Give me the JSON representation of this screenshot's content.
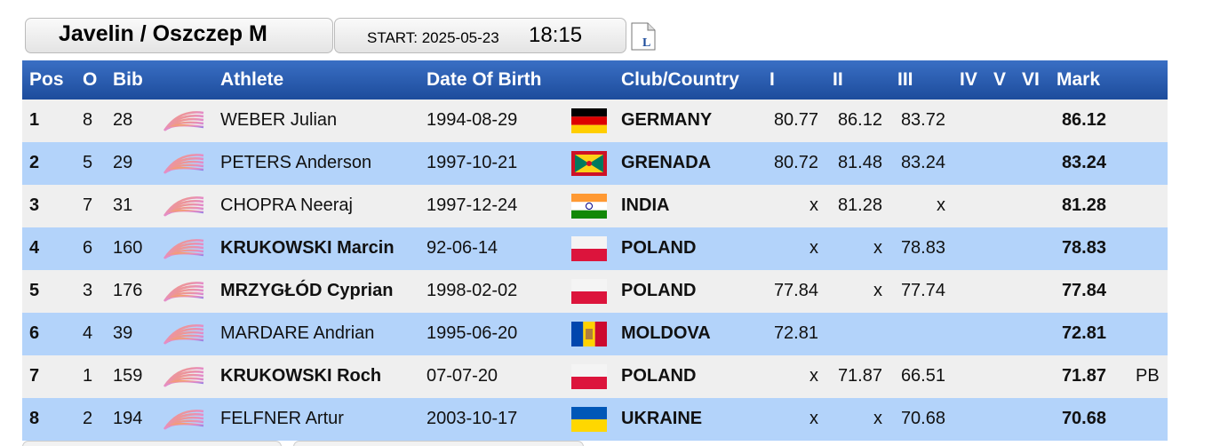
{
  "header": {
    "title": "Javelin / Oszczep M",
    "start_label": "START: 2025-05-23",
    "start_time": "18:15"
  },
  "table": {
    "columns": [
      "Pos",
      "O",
      "Bib",
      "Athlete",
      "Date Of Birth",
      "Club/Country",
      "I",
      "II",
      "III",
      "IV",
      "V",
      "VI",
      "Mark"
    ],
    "rows": [
      {
        "pos": 1,
        "order": 8,
        "bib": 28,
        "athlete": "WEBER Julian",
        "dob": "1994-08-29",
        "country": "GERMANY",
        "attempts": [
          "80.77",
          "86.12",
          "83.72",
          null,
          null,
          null
        ],
        "mark": "86.12",
        "note": null
      },
      {
        "pos": 2,
        "order": 5,
        "bib": 29,
        "athlete": "PETERS Anderson",
        "dob": "1997-10-21",
        "country": "GRENADA",
        "attempts": [
          "80.72",
          "81.48",
          "83.24",
          null,
          null,
          null
        ],
        "mark": "83.24",
        "note": null
      },
      {
        "pos": 3,
        "order": 7,
        "bib": 31,
        "athlete": "CHOPRA Neeraj",
        "dob": "1997-12-24",
        "country": "INDIA",
        "attempts": [
          "x",
          "81.28",
          "x",
          null,
          null,
          null
        ],
        "mark": "81.28",
        "note": null
      },
      {
        "pos": 4,
        "order": 6,
        "bib": 160,
        "athlete": "KRUKOWSKI Marcin",
        "dob": "92-06-14",
        "country": "POLAND",
        "attempts": [
          "x",
          "x",
          "78.83",
          null,
          null,
          null
        ],
        "mark": "78.83",
        "note": null
      },
      {
        "pos": 5,
        "order": 3,
        "bib": 176,
        "athlete": "MRZYGŁÓD Cyprian",
        "dob": "1998-02-02",
        "country": "POLAND",
        "attempts": [
          "77.84",
          "x",
          "77.74",
          null,
          null,
          null
        ],
        "mark": "77.84",
        "note": null
      },
      {
        "pos": 6,
        "order": 4,
        "bib": 39,
        "athlete": "MARDARE Andrian",
        "dob": "1995-06-20",
        "country": "MOLDOVA",
        "attempts": [
          "72.81",
          null,
          null,
          null,
          null,
          null
        ],
        "mark": "72.81",
        "note": null
      },
      {
        "pos": 7,
        "order": 1,
        "bib": 159,
        "athlete": "KRUKOWSKI Roch",
        "dob": "07-07-20",
        "country": "POLAND",
        "attempts": [
          "x",
          "71.87",
          "66.51",
          null,
          null,
          null
        ],
        "mark": "71.87",
        "note": "PB"
      },
      {
        "pos": 8,
        "order": 2,
        "bib": 194,
        "athlete": "FELFNER Artur",
        "dob": "2003-10-17",
        "country": "UKRAINE",
        "attempts": [
          "x",
          "x",
          "70.68",
          null,
          null,
          null
        ],
        "mark": "70.68",
        "note": null
      }
    ]
  }
}
